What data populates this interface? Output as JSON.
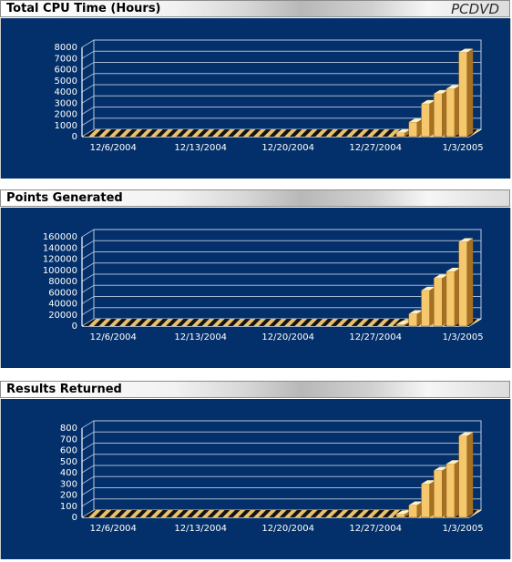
{
  "page": {
    "brand": "PCDVD"
  },
  "charts": [
    {
      "id": "cpu",
      "title": "Total CPU Time (Hours)",
      "brand": "PCDVD"
    },
    {
      "id": "points",
      "title": "Points Generated",
      "brand": ""
    },
    {
      "id": "results",
      "title": "Results Returned",
      "brand": ""
    }
  ],
  "chart_data": [
    {
      "type": "bar",
      "title": "Total CPU Time (Hours)",
      "xlabel": "",
      "ylabel": "",
      "ylim": [
        0,
        8000
      ],
      "y_ticks": [
        "0",
        "1000",
        "2000",
        "3000",
        "4000",
        "5000",
        "6000",
        "7000",
        "8000"
      ],
      "x_tick_labels": [
        "12/6/2004",
        "12/13/2004",
        "12/20/2004",
        "12/27/2004",
        "1/3/2005"
      ],
      "categories": [
        "12/4/2004",
        "12/5/2004",
        "12/6/2004",
        "12/7/2004",
        "12/8/2004",
        "12/9/2004",
        "12/10/2004",
        "12/11/2004",
        "12/12/2004",
        "12/13/2004",
        "12/14/2004",
        "12/15/2004",
        "12/16/2004",
        "12/17/2004",
        "12/18/2004",
        "12/19/2004",
        "12/20/2004",
        "12/21/2004",
        "12/22/2004",
        "12/23/2004",
        "12/24/2004",
        "12/25/2004",
        "12/26/2004",
        "12/27/2004",
        "12/28/2004",
        "12/29/2004",
        "12/30/2004",
        "12/31/2004",
        "1/1/2005",
        "1/2/2005",
        "1/3/2005"
      ],
      "values": [
        0,
        0,
        0,
        0,
        0,
        0,
        0,
        0,
        0,
        0,
        0,
        0,
        0,
        0,
        0,
        0,
        0,
        0,
        0,
        0,
        0,
        0,
        0,
        0,
        0,
        350,
        1300,
        2950,
        3850,
        4300,
        7550
      ],
      "grid": true,
      "legend": "none",
      "colors": {
        "background": "#03306a",
        "grid": "#b8c7dd",
        "axis": "#ffffff",
        "bar_front": "#f5c86d",
        "bar_top": "#fff1c0",
        "bar_side": "#a57022",
        "stripe": "#121212"
      }
    },
    {
      "type": "bar",
      "title": "Points Generated",
      "xlabel": "",
      "ylabel": "",
      "ylim": [
        0,
        160000
      ],
      "y_ticks": [
        "0",
        "20000",
        "40000",
        "60000",
        "80000",
        "100000",
        "120000",
        "140000",
        "160000"
      ],
      "x_tick_labels": [
        "12/6/2004",
        "12/13/2004",
        "12/20/2004",
        "12/27/2004",
        "1/3/2005"
      ],
      "categories": [
        "12/4/2004",
        "12/5/2004",
        "12/6/2004",
        "12/7/2004",
        "12/8/2004",
        "12/9/2004",
        "12/10/2004",
        "12/11/2004",
        "12/12/2004",
        "12/13/2004",
        "12/14/2004",
        "12/15/2004",
        "12/16/2004",
        "12/17/2004",
        "12/18/2004",
        "12/19/2004",
        "12/20/2004",
        "12/21/2004",
        "12/22/2004",
        "12/23/2004",
        "12/24/2004",
        "12/25/2004",
        "12/26/2004",
        "12/27/2004",
        "12/28/2004",
        "12/29/2004",
        "12/30/2004",
        "12/31/2004",
        "1/1/2005",
        "1/2/2005",
        "1/3/2005"
      ],
      "values": [
        0,
        0,
        0,
        0,
        0,
        0,
        0,
        0,
        0,
        0,
        0,
        0,
        0,
        0,
        0,
        0,
        0,
        0,
        0,
        0,
        0,
        0,
        0,
        0,
        0,
        3000,
        22000,
        64000,
        86000,
        98000,
        151000
      ],
      "grid": true,
      "legend": "none",
      "colors": {
        "background": "#03306a",
        "grid": "#b8c7dd",
        "axis": "#ffffff",
        "bar_front": "#f5c86d",
        "bar_top": "#fff1c0",
        "bar_side": "#a57022",
        "stripe": "#121212"
      }
    },
    {
      "type": "bar",
      "title": "Results Returned",
      "xlabel": "",
      "ylabel": "",
      "ylim": [
        0,
        800
      ],
      "y_ticks": [
        "0",
        "100",
        "200",
        "300",
        "400",
        "500",
        "600",
        "700",
        "800"
      ],
      "x_tick_labels": [
        "12/6/2004",
        "12/13/2004",
        "12/20/2004",
        "12/27/2004",
        "1/3/2005"
      ],
      "categories": [
        "12/4/2004",
        "12/5/2004",
        "12/6/2004",
        "12/7/2004",
        "12/8/2004",
        "12/9/2004",
        "12/10/2004",
        "12/11/2004",
        "12/12/2004",
        "12/13/2004",
        "12/14/2004",
        "12/15/2004",
        "12/16/2004",
        "12/17/2004",
        "12/18/2004",
        "12/19/2004",
        "12/20/2004",
        "12/21/2004",
        "12/22/2004",
        "12/23/2004",
        "12/24/2004",
        "12/25/2004",
        "12/26/2004",
        "12/27/2004",
        "12/28/2004",
        "12/29/2004",
        "12/30/2004",
        "12/31/2004",
        "1/1/2005",
        "1/2/2005",
        "1/3/2005"
      ],
      "values": [
        0,
        0,
        0,
        0,
        0,
        0,
        0,
        0,
        0,
        0,
        0,
        0,
        0,
        0,
        0,
        0,
        0,
        0,
        0,
        0,
        0,
        0,
        0,
        0,
        0,
        30,
        110,
        300,
        420,
        480,
        730
      ],
      "grid": true,
      "legend": "none",
      "colors": {
        "background": "#03306a",
        "grid": "#b8c7dd",
        "axis": "#ffffff",
        "bar_front": "#f5c86d",
        "bar_top": "#fff1c0",
        "bar_side": "#a57022",
        "stripe": "#121212"
      }
    }
  ]
}
